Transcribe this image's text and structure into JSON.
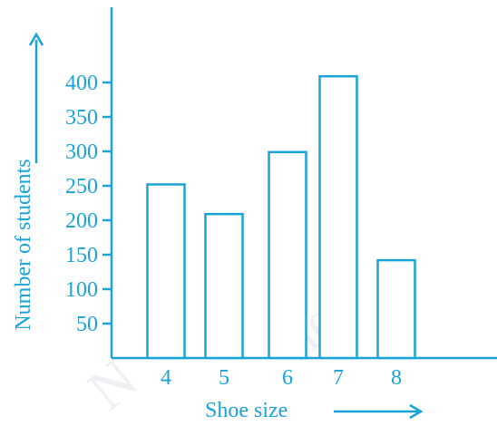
{
  "colors": {
    "accent": "#1aa3d9",
    "background": "#ffffff"
  },
  "chart_data": {
    "type": "bar",
    "categories": [
      "4",
      "5",
      "6",
      "7",
      "8"
    ],
    "values": [
      252,
      209,
      299,
      409,
      142
    ],
    "xlabel": "Shoe size",
    "ylabel": "Number of students",
    "yticks": [
      50,
      100,
      150,
      200,
      250,
      300,
      350,
      400
    ],
    "ylim": [
      0,
      450
    ],
    "grid": false,
    "legend": "none",
    "axis_arrows": true
  }
}
